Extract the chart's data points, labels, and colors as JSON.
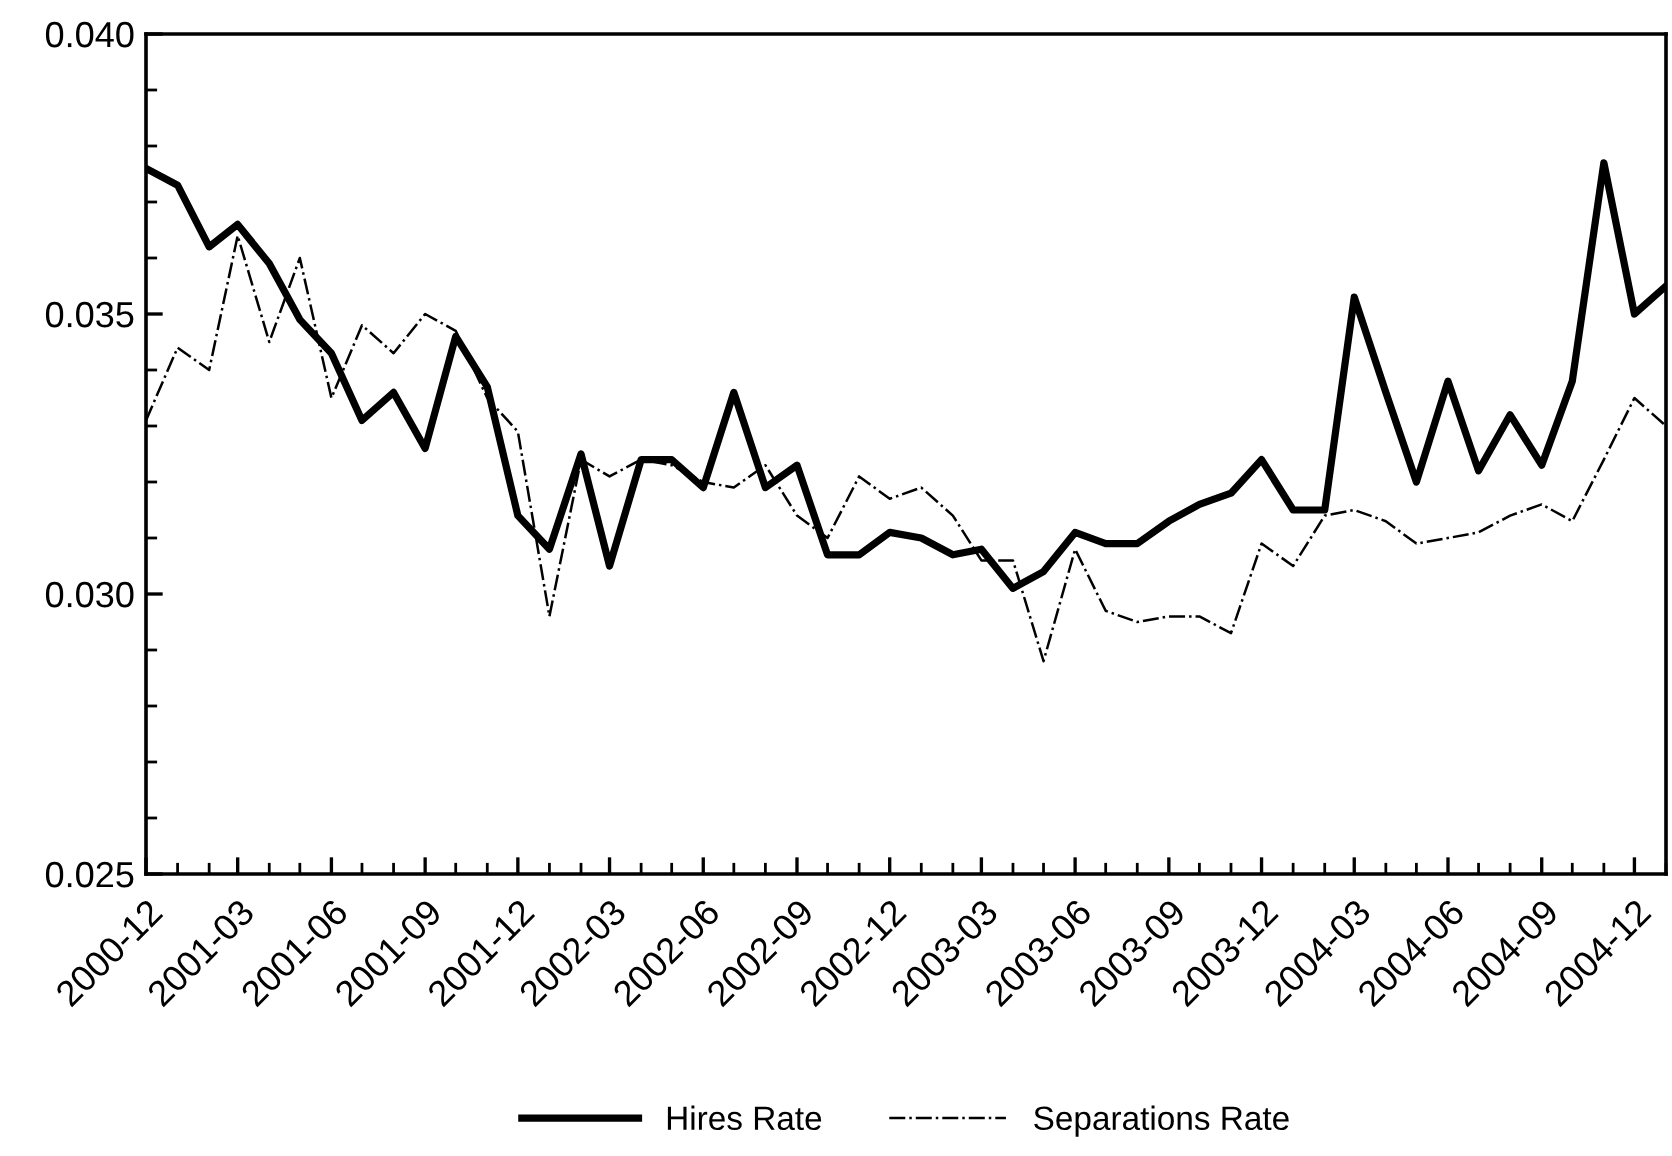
{
  "chart_data": {
    "type": "line",
    "x": [
      "2000-12",
      "2001-01",
      "2001-02",
      "2001-03",
      "2001-04",
      "2001-05",
      "2001-06",
      "2001-07",
      "2001-08",
      "2001-09",
      "2001-10",
      "2001-11",
      "2001-12",
      "2002-01",
      "2002-02",
      "2002-03",
      "2002-04",
      "2002-05",
      "2002-06",
      "2002-07",
      "2002-08",
      "2002-09",
      "2002-10",
      "2002-11",
      "2002-12",
      "2003-01",
      "2003-02",
      "2003-03",
      "2003-04",
      "2003-05",
      "2003-06",
      "2003-07",
      "2003-08",
      "2003-09",
      "2003-10",
      "2003-11",
      "2003-12",
      "2004-01",
      "2004-02",
      "2004-03",
      "2004-04",
      "2004-05",
      "2004-06",
      "2004-07",
      "2004-08",
      "2004-09",
      "2004-10",
      "2004-11",
      "2004-12",
      "2005-01"
    ],
    "series": [
      {
        "name": "Hires Rate",
        "color": "#000000",
        "line_style": "solid",
        "values": [
          0.0376,
          0.0373,
          0.0362,
          0.0366,
          0.0359,
          0.0349,
          0.0343,
          0.0331,
          0.0336,
          0.0326,
          0.0346,
          0.0337,
          0.0314,
          0.0308,
          0.0325,
          0.0305,
          0.0324,
          0.0324,
          0.0319,
          0.0336,
          0.0319,
          0.0323,
          0.0307,
          0.0307,
          0.0311,
          0.031,
          0.0307,
          0.0308,
          0.0301,
          0.0304,
          0.0311,
          0.0309,
          0.0309,
          0.0313,
          0.0316,
          0.0318,
          0.0324,
          0.0315,
          0.0315,
          0.0353,
          0.0336,
          0.032,
          0.0338,
          0.0322,
          0.0332,
          0.0323,
          0.0338,
          0.0377,
          0.035,
          0.0355
        ]
      },
      {
        "name": "Separations Rate",
        "color": "#000000",
        "line_style": "dashdot",
        "values": [
          0.0331,
          0.0344,
          0.034,
          0.0364,
          0.0345,
          0.036,
          0.0335,
          0.0348,
          0.0343,
          0.035,
          0.0347,
          0.0335,
          0.0329,
          0.0296,
          0.0324,
          0.0321,
          0.0324,
          0.0323,
          0.032,
          0.0319,
          0.0323,
          0.0314,
          0.031,
          0.0321,
          0.0317,
          0.0319,
          0.0314,
          0.0306,
          0.0306,
          0.0288,
          0.0308,
          0.0297,
          0.0295,
          0.0296,
          0.0296,
          0.0293,
          0.0309,
          0.0305,
          0.0314,
          0.0315,
          0.0313,
          0.0309,
          0.031,
          0.0311,
          0.0314,
          0.0316,
          0.0313,
          0.0324,
          0.0335,
          0.033
        ]
      }
    ],
    "xlim": [
      "2000-12",
      "2005-01"
    ],
    "xticks": [
      "2000-12",
      "2001-03",
      "2001-06",
      "2001-09",
      "2001-12",
      "2002-03",
      "2002-06",
      "2002-09",
      "2002-12",
      "2003-03",
      "2003-06",
      "2003-09",
      "2003-12",
      "2004-03",
      "2004-06",
      "2004-09",
      "2004-12"
    ],
    "ylim": [
      0.025,
      0.04
    ],
    "yticks": [
      {
        "value": 0.025,
        "label": "0.025"
      },
      {
        "value": 0.03,
        "label": "0.030"
      },
      {
        "value": 0.035,
        "label": "0.035"
      },
      {
        "value": 0.04,
        "label": "0.040"
      }
    ],
    "grid": false,
    "legend": "bottom"
  }
}
